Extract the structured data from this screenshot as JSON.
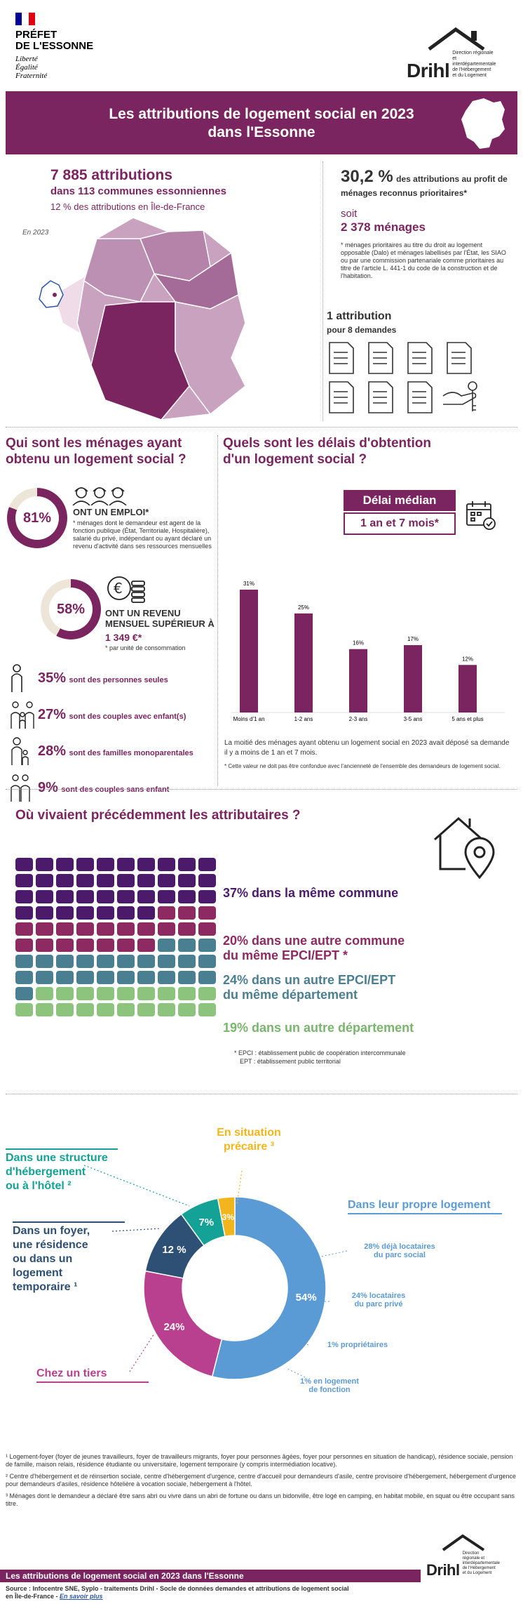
{
  "header": {
    "prefet_title": "PRÉFET\nDE L'ESSONNE",
    "motto": [
      "Liberté",
      "Égalité",
      "Fraternité"
    ],
    "drihl_word": "Drihl",
    "drihl_sub": "Direction régionale et interdépartementale de l'Hébergement et du Logement"
  },
  "banner": {
    "title_line1": "Les attributions de logement social en 2023",
    "title_line2": "dans l'Essonne"
  },
  "overview": {
    "attributions": "7 885 attributions",
    "communes": "dans 113 communes essonniennes",
    "share": "12 % des attributions en Île-de-France",
    "year_label": "En 2023",
    "prior_pct": "30,2 %",
    "prior_text": "des attributions au profit de ménages reconnus prioritaires*",
    "soit": "soit",
    "menages": "2 378 ménages",
    "prior_note": "* ménages prioritaires au titre du droit au logement opposable (Dalo) et ménages labellisés par l'État, les SIAO ou par une commission partenariale comme prioritaires au titre de l'article L. 441-1 du code de la construction et de l'habitation.",
    "ratio_title": "1 attribution",
    "ratio_sub": "pour 8 demandes"
  },
  "households": {
    "title": "Qui sont les ménages ayant obtenu un logement social ?",
    "emploi_pct": "81%",
    "emploi_label": "ONT UN EMPLOI*",
    "emploi_note": "* ménages dont le demandeur est agent de la fonction publique (État, Territoriale, Hospitalière), salarié du privé, indépendant ou ayant déclaré un revenu d'activité dans ses ressources mensuelles",
    "emploi_value": 0.81,
    "revenu_pct": "58%",
    "revenu_label": "ONT UN REVENU MENSUEL SUPÉRIEUR À",
    "revenu_amount": "1 349 €*",
    "revenu_note": "* par unité de consommation",
    "revenu_value": 0.58,
    "compositions": [
      {
        "pct": "35%",
        "label": "sont des personnes seules",
        "icon": "single-person-icon"
      },
      {
        "pct": "27%",
        "label": "sont des couples avec enfant(s)",
        "icon": "family-icon"
      },
      {
        "pct": "28%",
        "label": "sont des familles monoparentales",
        "icon": "single-parent-icon"
      },
      {
        "pct": "9%",
        "label": "sont des couples sans enfant",
        "icon": "couple-icon"
      }
    ]
  },
  "delays": {
    "title": "Quels sont les délais d'obtention d'un logement social ?",
    "median_label": "Délai médian",
    "median_value": "1 an et 7 mois*",
    "text": "La moitié des ménages ayant obtenu un logement social en 2023 avait déposé sa demande il y a moins de 1 an et 7 mois.",
    "note": "* Cette valeur ne doit pas être confondue avec l'ancienneté de l'ensemble des demandeurs de logement social."
  },
  "chart_data": {
    "type": "bar",
    "categories": [
      "Moins d'1 an",
      "1-2 ans",
      "2-3 ans",
      "3-5 ans",
      "5 ans et plus"
    ],
    "values": [
      31,
      25,
      16,
      17,
      12
    ],
    "value_labels": [
      "31%",
      "25%",
      "16%",
      "17%",
      "12%"
    ],
    "ylim": [
      0,
      31
    ],
    "grid": false,
    "color": "#7b2560"
  },
  "origins": {
    "title": "Où vivaient précédemment les attributaires ?",
    "categories": [
      {
        "text": "37% dans la même commune",
        "value": 37,
        "color": "#4b1a6b"
      },
      {
        "text": "20% dans une autre commune\ndu même EPCI/EPT *",
        "value": 20,
        "color": "#8e2a62"
      },
      {
        "text": "24% dans un autre EPCI/EPT\ndu même département",
        "value": 24,
        "color": "#4a7f91"
      },
      {
        "text": "19% dans un autre département",
        "value": 19,
        "color": "#8cc47e"
      }
    ],
    "note_line1": "* EPCI : établissement public de coopération intercommunale",
    "note_line2": "EPT : établissement public territorial"
  },
  "housing": {
    "labels": {
      "precaire": "En situation\nprécaire ³",
      "hebergement": "Dans une structure\nd'hébergement\nou à l'hôtel ²",
      "foyer": "Dans un foyer,\nune résidence\nou dans un\nlogement\ntemporaire ¹",
      "tiers": "Chez un tiers",
      "propre": "Dans leur propre logement"
    },
    "slices": [
      {
        "name": "Dans leur propre logement",
        "value": 54,
        "label": "54%",
        "color": "#5b9bd5"
      },
      {
        "name": "Chez un tiers",
        "value": 24,
        "label": "24%",
        "color": "#b8408f"
      },
      {
        "name": "Dans un foyer",
        "value": 12,
        "label": "12 %",
        "color": "#2e5074"
      },
      {
        "name": "Dans une structure d'hébergement",
        "value": 7,
        "label": "7%",
        "color": "#14a196"
      },
      {
        "name": "En situation précaire",
        "value": 3,
        "label": "3%",
        "color": "#f2b51e"
      }
    ],
    "details": [
      "28% déjà locataires\ndu parc social",
      "24% locataires\ndu parc privé",
      "1% propriétaires",
      "1% en logement\nde fonction"
    ]
  },
  "footnotes": {
    "n1": "¹ Logement-foyer (foyer de jeunes travailleurs, foyer de travailleurs migrants, foyer pour personnes âgées, foyer pour personnes en situation de handicap), résidence sociale, pension de famille, maison relais, résidence étudiante ou universitaire, logement temporaire (y compris intermédiation locative).",
    "n2": "² Centre d'hébergement et de réinsertion sociale, centre d'hébergement d'urgence, centre d'accueil pour demandeurs d'asile, centre provisoire d'hébergement, hébergement d'urgence pour demandeurs d'asiles, résidence hôtelière à vocation sociale, hébergement à l'hôtel.",
    "n3": "³ Ménages dont le demandeur a déclaré être sans abri ou vivre dans un abri de fortune ou dans un bidonville, être logé en camping, en habitat mobile, en squat ou être occupant sans titre."
  },
  "footer": {
    "bar_title": "Les attributions de logement social en 2023 dans l'Essonne",
    "source": "Source : Infocentre SNE, Syplo - traitements Drihl - Socle de données demandes et attributions de logement social",
    "source2": "en Île-de-France - ",
    "link": "En savoir plus",
    "drihl_word": "Drihl",
    "drihl_sub": "Direction régionale et interdépartementale de l'Hébergement et du Logement"
  }
}
